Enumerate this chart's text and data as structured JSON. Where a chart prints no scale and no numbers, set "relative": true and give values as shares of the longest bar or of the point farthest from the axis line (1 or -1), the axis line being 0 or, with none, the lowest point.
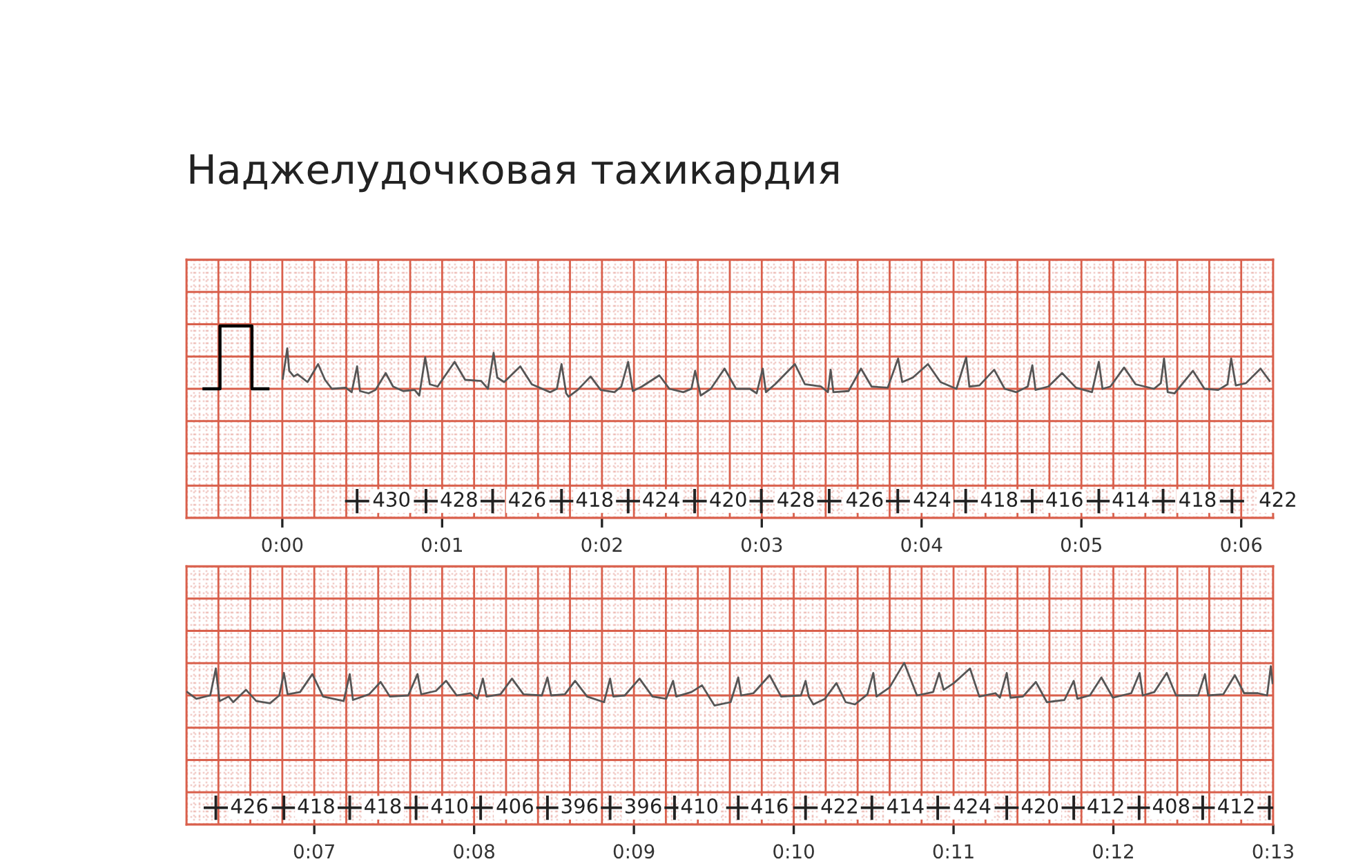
{
  "chart_data": [
    {
      "type": "line",
      "title": "Наджелудочковая тахикардия",
      "relative": true,
      "grid": true,
      "tick_labels": "x",
      "xlim": [
        -0.6,
        6.2
      ],
      "xticks": [
        {
          "value": 0,
          "label": "0:00"
        },
        {
          "value": 1,
          "label": "0:01"
        },
        {
          "value": 2,
          "label": "0:02"
        },
        {
          "value": 3,
          "label": "0:03"
        },
        {
          "value": 4,
          "label": "0:04"
        },
        {
          "value": 5,
          "label": "0:05"
        },
        {
          "value": 6,
          "label": "0:06"
        }
      ],
      "series": [
        {
          "type": "line",
          "color": "#000000",
          "x": [
            -0.49,
            -0.39,
            -0.39,
            -0.19,
            -0.19,
            -0.09
          ],
          "values": [
            0,
            0,
            0.56,
            0.56,
            0,
            0
          ]
        },
        {
          "type": "line",
          "color": "#555555",
          "x": [
            0.003,
            0.031,
            0.043,
            0.072,
            0.095,
            0.158,
            0.224,
            0.267,
            0.31,
            0.397,
            0.434,
            0.468,
            0.486,
            0.54,
            0.583,
            0.647,
            0.693,
            0.756,
            0.828,
            0.857,
            0.894,
            0.923,
            0.972,
            1.078,
            1.144,
            1.244,
            1.287,
            1.322,
            1.345,
            1.388,
            1.489,
            1.561,
            1.675,
            1.718,
            1.747,
            1.776,
            1.791,
            1.848,
            1.929,
            1.992,
            2.078,
            2.121,
            2.164,
            2.193,
            2.25,
            2.359,
            2.422,
            2.509,
            2.56,
            2.583,
            2.618,
            2.681,
            2.767,
            2.839,
            2.925,
            2.968,
            3.006,
            3.026,
            3.083,
            3.207,
            3.27,
            3.371,
            3.414,
            3.431,
            3.448,
            3.543,
            3.621,
            3.687,
            3.788,
            3.853,
            3.879,
            3.945,
            4.04,
            4.118,
            4.218,
            4.279,
            4.299,
            4.362,
            4.454,
            4.52,
            4.592,
            4.664,
            4.693,
            4.713,
            4.793,
            4.879,
            4.966,
            5.066,
            5.109,
            5.132,
            5.181,
            5.267,
            5.339,
            5.454,
            5.497,
            5.517,
            5.54,
            5.583,
            5.698,
            5.77,
            5.856,
            5.914,
            5.937,
            5.966,
            6.029,
            6.121,
            6.178
          ],
          "values": [
            0.09,
            0.36,
            0.16,
            0.11,
            0.13,
            0.06,
            0.22,
            0.08,
            0,
            0.01,
            -0.03,
            0.2,
            -0.02,
            -0.04,
            -0.01,
            0.14,
            0.02,
            -0.02,
            -0.01,
            -0.06,
            0.28,
            0.04,
            0.02,
            0.24,
            0.08,
            0.07,
            0,
            0.32,
            0.1,
            0.06,
            0.2,
            0.04,
            -0.03,
            0,
            0.22,
            -0.04,
            -0.07,
            -0.01,
            0.11,
            -0.01,
            -0.03,
            0.02,
            0.24,
            -0.02,
            0.02,
            0.12,
            0,
            -0.03,
            0,
            0.16,
            -0.06,
            0,
            0.18,
            0,
            0,
            -0.04,
            0.18,
            -0.03,
            0.04,
            0.22,
            0.04,
            0.02,
            -0.03,
            0.17,
            -0.03,
            -0.02,
            0.18,
            0.02,
            0.01,
            0.27,
            0.06,
            0.1,
            0.22,
            0.06,
            0,
            0.28,
            0.02,
            0.03,
            0.17,
            0,
            -0.03,
            0.02,
            0.21,
            -0.01,
            0.02,
            0.14,
            0.01,
            -0.03,
            0.24,
            0,
            0.02,
            0.19,
            0.04,
            0,
            0.05,
            0.27,
            -0.03,
            -0.04,
            0.16,
            0,
            -0.01,
            0.04,
            0.27,
            0.03,
            0.05,
            0.18,
            0.07
          ]
        },
        {
          "type": "scatter",
          "marker": "cross",
          "color": "#222222",
          "x": [
            0.468,
            0.899,
            1.316,
            1.747,
            2.164,
            2.58,
            2.997,
            3.422,
            3.851,
            4.276,
            4.692,
            5.109,
            5.511,
            5.942
          ],
          "values": [
            -1,
            -1,
            -1,
            -1,
            -1,
            -1,
            -1,
            -1,
            -1,
            -1,
            -1,
            -1,
            -1,
            -1
          ]
        }
      ],
      "annotations": [
        {
          "text": "430",
          "x": 0.684,
          "y": -1
        },
        {
          "text": "428",
          "x": 1.106,
          "y": -1
        },
        {
          "text": "426",
          "x": 1.532,
          "y": -1
        },
        {
          "text": "418",
          "x": 1.954,
          "y": -1
        },
        {
          "text": "424",
          "x": 2.371,
          "y": -1
        },
        {
          "text": "420",
          "x": 2.79,
          "y": -1
        },
        {
          "text": "428",
          "x": 3.213,
          "y": -1
        },
        {
          "text": "426",
          "x": 3.644,
          "y": -1
        },
        {
          "text": "424",
          "x": 4.066,
          "y": -1
        },
        {
          "text": "418",
          "x": 4.486,
          "y": -1
        },
        {
          "text": "416",
          "x": 4.894,
          "y": -1
        },
        {
          "text": "414",
          "x": 5.31,
          "y": -1
        },
        {
          "text": "418",
          "x": 5.727,
          "y": -1
        },
        {
          "text": "422",
          "x": 6.23,
          "y": -1
        }
      ]
    },
    {
      "type": "line",
      "relative": true,
      "grid": true,
      "tick_labels": "x",
      "xlim": [
        6.2,
        13.0
      ],
      "xticks": [
        {
          "value": 7,
          "label": "0:07"
        },
        {
          "value": 8,
          "label": "0:08"
        },
        {
          "value": 9,
          "label": "0:09"
        },
        {
          "value": 10,
          "label": "0:10"
        },
        {
          "value": 11,
          "label": "0:11"
        },
        {
          "value": 12,
          "label": "0:12"
        },
        {
          "value": 13,
          "label": "0:13"
        }
      ],
      "series": [
        {
          "type": "line",
          "color": "#555555",
          "x": [
            6.205,
            6.262,
            6.349,
            6.384,
            6.407,
            6.464,
            6.493,
            6.573,
            6.637,
            6.723,
            6.781,
            6.81,
            6.833,
            6.911,
            6.988,
            7.055,
            7.184,
            7.222,
            7.242,
            7.343,
            7.415,
            7.473,
            7.588,
            7.646,
            7.669,
            7.761,
            7.825,
            7.891,
            7.977,
            8.021,
            8.055,
            8.078,
            8.165,
            8.237,
            8.309,
            8.424,
            8.459,
            8.482,
            8.568,
            8.632,
            8.707,
            8.813,
            8.851,
            8.871,
            8.943,
            9.035,
            9.116,
            9.202,
            9.245,
            9.265,
            9.36,
            9.426,
            9.504,
            9.605,
            9.653,
            9.671,
            9.748,
            9.849,
            9.921,
            10.045,
            10.074,
            10.094,
            10.123,
            10.195,
            10.267,
            10.325,
            10.383,
            10.461,
            10.498,
            10.518,
            10.599,
            10.691,
            10.771,
            10.872,
            10.91,
            10.938,
            11.002,
            11.103,
            11.161,
            11.262,
            11.29,
            11.333,
            11.356,
            11.434,
            11.515,
            11.584,
            11.694,
            11.752,
            11.775,
            11.853,
            11.925,
            11.997,
            12.112,
            12.164,
            12.184,
            12.256,
            12.334,
            12.392,
            12.53,
            12.573,
            12.593,
            12.688,
            12.76,
            12.818,
            12.904,
            12.962,
            12.985,
            12.996
          ],
          "values": [
            0.03,
            -0.03,
            0,
            0.24,
            -0.05,
            -0.01,
            -0.06,
            0.05,
            -0.05,
            -0.07,
            0,
            0.2,
            0.01,
            0.03,
            0.19,
            -0.01,
            -0.05,
            0.19,
            -0.04,
            0.01,
            0.12,
            -0.01,
            0,
            0.19,
            0.01,
            0.04,
            0.13,
            0,
            0.02,
            -0.03,
            0.15,
            -0.01,
            0.01,
            0.15,
            0.01,
            0,
            0.16,
            0,
            0.01,
            0.13,
            -0.01,
            -0.06,
            0.15,
            -0.01,
            0,
            0.15,
            -0.01,
            -0.03,
            0.13,
            -0.01,
            0.03,
            0.09,
            -0.09,
            -0.06,
            0.16,
            0,
            0.02,
            0.18,
            -0.01,
            0,
            0.13,
            -0.01,
            -0.08,
            -0.03,
            0.11,
            -0.06,
            -0.08,
            0.01,
            0.2,
            -0.01,
            0.07,
            0.29,
            0,
            0.03,
            0.2,
            0.05,
            0.11,
            0.24,
            -0.01,
            0.02,
            -0.02,
            0.2,
            -0.02,
            -0.01,
            0.12,
            -0.06,
            -0.04,
            0.13,
            -0.03,
            0,
            0.16,
            -0.02,
            0.02,
            0.2,
            0,
            0.03,
            0.2,
            0,
            0,
            0.19,
            0,
            0.01,
            0.18,
            0.02,
            0.02,
            0,
            0.26,
            0.11
          ]
        },
        {
          "type": "scatter",
          "marker": "cross",
          "color": "#222222",
          "x": [
            6.384,
            6.81,
            7.222,
            7.637,
            8.041,
            8.459,
            8.851,
            9.254,
            9.653,
            10.074,
            10.489,
            10.901,
            11.333,
            11.752,
            12.161,
            12.559,
            12.976
          ],
          "values": [
            -1,
            -1,
            -1,
            -1,
            -1,
            -1,
            -1,
            -1,
            -1,
            -1,
            -1,
            -1,
            -1,
            -1,
            -1,
            -1,
            -1
          ]
        }
      ],
      "annotations": [
        {
          "text": "426",
          "x": 6.594,
          "y": -1
        },
        {
          "text": "418",
          "x": 7.012,
          "y": -1
        },
        {
          "text": "418",
          "x": 7.429,
          "y": -1
        },
        {
          "text": "410",
          "x": 7.847,
          "y": -1
        },
        {
          "text": "406",
          "x": 8.256,
          "y": -1
        },
        {
          "text": "396",
          "x": 8.66,
          "y": -1
        },
        {
          "text": "396",
          "x": 9.058,
          "y": -1
        },
        {
          "text": "410",
          "x": 9.411,
          "y": -1
        },
        {
          "text": "416",
          "x": 9.849,
          "y": -1
        },
        {
          "text": "422",
          "x": 10.287,
          "y": -1
        },
        {
          "text": "414",
          "x": 10.699,
          "y": -1
        },
        {
          "text": "424",
          "x": 11.117,
          "y": -1
        },
        {
          "text": "420",
          "x": 11.541,
          "y": -1
        },
        {
          "text": "412",
          "x": 11.953,
          "y": -1
        },
        {
          "text": "408",
          "x": 12.362,
          "y": -1
        },
        {
          "text": "412",
          "x": 12.769,
          "y": -1
        }
      ]
    }
  ]
}
